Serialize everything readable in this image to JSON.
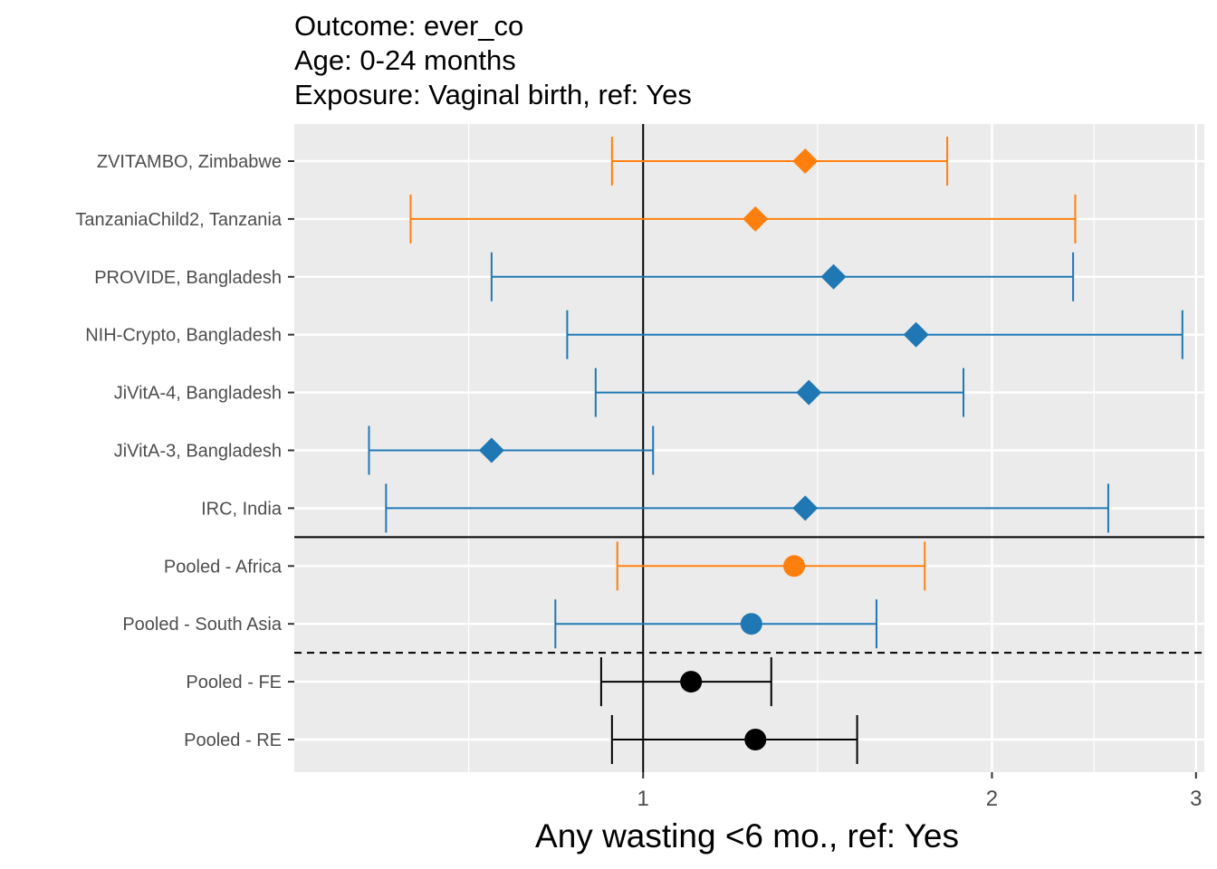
{
  "chart_data": {
    "type": "forest",
    "title_lines": [
      "Outcome: ever_co",
      "Age: 0-24 months",
      "Exposure: Vaginal birth, ref: Yes"
    ],
    "xlabel": "Any wasting  <6 mo., ref: Yes",
    "x_scale": "log",
    "xlim": [
      0.5,
      3.05
    ],
    "x_ticks": [
      1,
      2,
      3
    ],
    "x_tick_labels": [
      "1",
      "2",
      "3"
    ],
    "reference_line": 1,
    "grid": true,
    "colors": {
      "africa": "#ff7f0e",
      "south_asia": "#1f77b4",
      "overall": "#000000"
    },
    "rows": [
      {
        "label": "ZVITAMBO, Zimbabwe",
        "est": 1.38,
        "lower": 0.94,
        "upper": 1.83,
        "group": "africa",
        "shape": "diamond"
      },
      {
        "label": "TanzaniaChild2, Tanzania",
        "est": 1.25,
        "lower": 0.63,
        "upper": 2.36,
        "group": "africa",
        "shape": "diamond"
      },
      {
        "label": "PROVIDE, Bangladesh",
        "est": 1.46,
        "lower": 0.74,
        "upper": 2.35,
        "group": "south_asia",
        "shape": "diamond"
      },
      {
        "label": "NIH-Crypto, Bangladesh",
        "est": 1.72,
        "lower": 0.86,
        "upper": 2.92,
        "group": "south_asia",
        "shape": "diamond"
      },
      {
        "label": "JiVitA-4, Bangladesh",
        "est": 1.39,
        "lower": 0.91,
        "upper": 1.89,
        "group": "south_asia",
        "shape": "diamond"
      },
      {
        "label": "JiVitA-3, Bangladesh",
        "est": 0.74,
        "lower": 0.58,
        "upper": 1.02,
        "group": "south_asia",
        "shape": "diamond"
      },
      {
        "label": "IRC, India",
        "est": 1.38,
        "lower": 0.6,
        "upper": 2.52,
        "group": "south_asia",
        "shape": "diamond"
      },
      {
        "label": "Pooled - Africa",
        "est": 1.35,
        "lower": 0.95,
        "upper": 1.75,
        "group": "africa",
        "shape": "circle"
      },
      {
        "label": "Pooled - South Asia",
        "est": 1.24,
        "lower": 0.84,
        "upper": 1.59,
        "group": "south_asia",
        "shape": "circle"
      },
      {
        "label": "Pooled - FE",
        "est": 1.1,
        "lower": 0.92,
        "upper": 1.29,
        "group": "overall",
        "shape": "circle"
      },
      {
        "label": "Pooled - RE",
        "est": 1.25,
        "lower": 0.94,
        "upper": 1.53,
        "group": "overall",
        "shape": "circle"
      }
    ]
  }
}
